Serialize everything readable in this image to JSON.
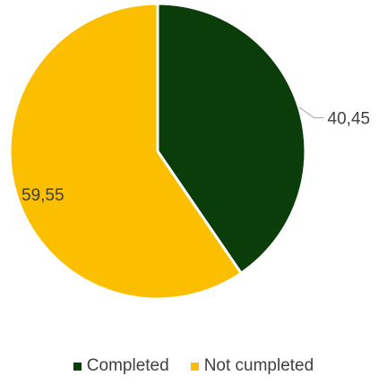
{
  "chart_data": {
    "type": "pie",
    "title": "",
    "categories": [
      "Completed",
      "Not cumpleted"
    ],
    "values": [
      40.45,
      59.55
    ],
    "data_labels": [
      "40,45",
      "59,55"
    ],
    "colors": [
      "#0b3d0b",
      "#fbbf00"
    ],
    "start_angle_deg": 0,
    "direction": "clockwise",
    "legend": "bottom"
  }
}
